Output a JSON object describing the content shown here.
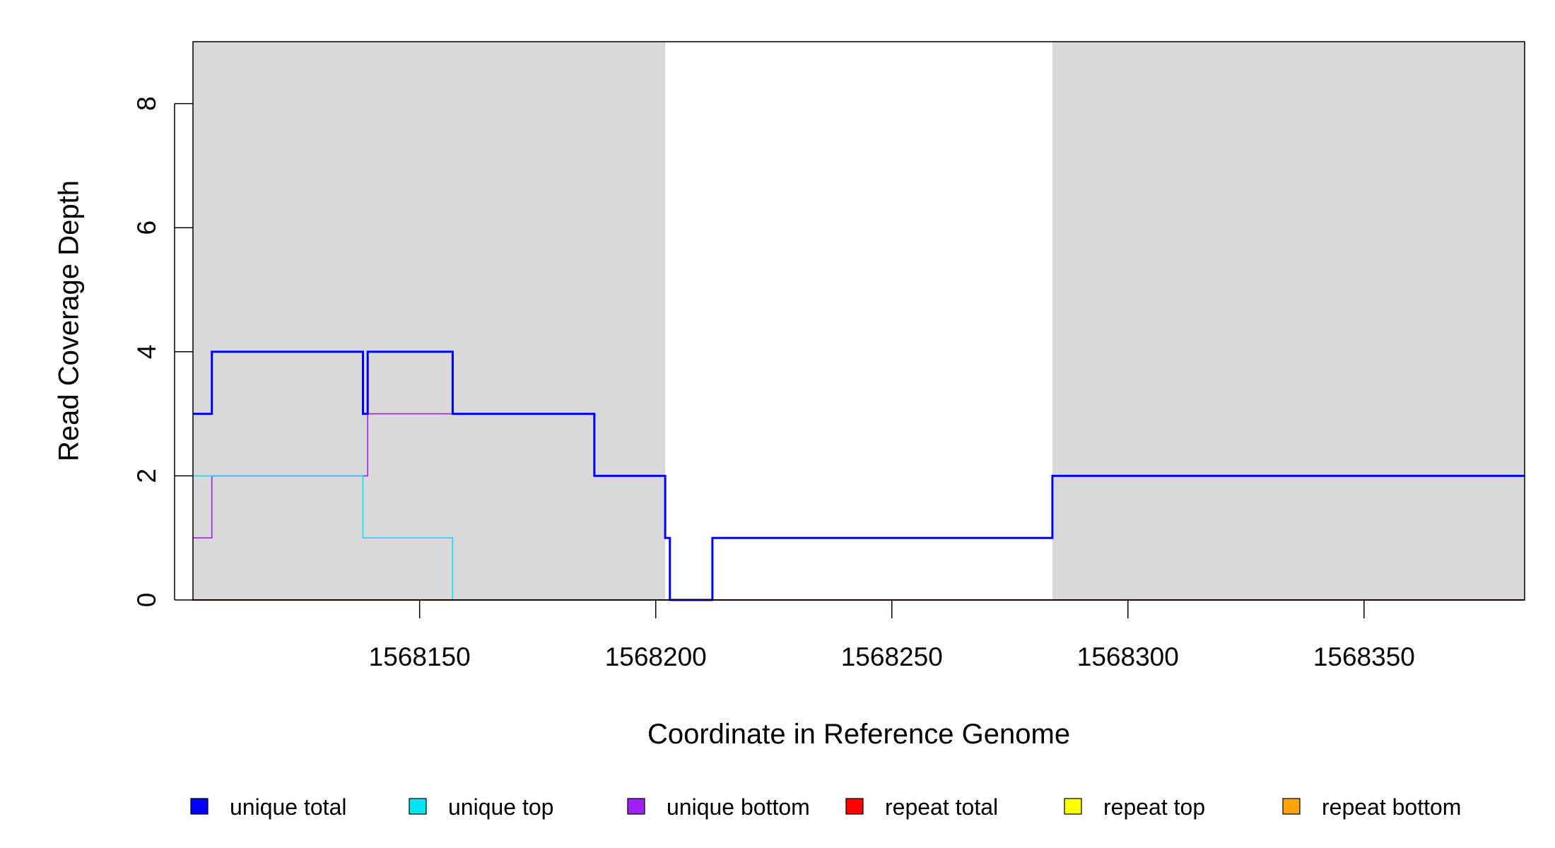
{
  "chart_data": {
    "type": "line",
    "xlabel": "Coordinate in Reference Genome",
    "ylabel": "Read Coverage Depth",
    "xlim": [
      1568102,
      1568384
    ],
    "ylim": [
      0,
      9
    ],
    "x_ticks": [
      1568150,
      1568200,
      1568250,
      1568300,
      1568350
    ],
    "x_tick_labels": [
      "1568150",
      "1568200",
      "1568250",
      "1568300",
      "1568350"
    ],
    "y_ticks": [
      0,
      2,
      4,
      6,
      8
    ],
    "y_tick_labels": [
      "0",
      "2",
      "4",
      "6",
      "8"
    ],
    "shaded_regions": [
      {
        "x_start": 1568102,
        "x_end": 1568202,
        "color": "#d9d9d9"
      },
      {
        "x_start": 1568284,
        "x_end": 1568384,
        "color": "#d9d9d9"
      }
    ],
    "series": [
      {
        "name": "unique total",
        "color": "#0000ff",
        "step": true,
        "x": [
          1568102,
          1568106,
          1568138,
          1568139,
          1568157,
          1568187,
          1568202,
          1568203,
          1568212,
          1568284,
          1568384
        ],
        "y": [
          3,
          4,
          3,
          4,
          3,
          2,
          1,
          0,
          1,
          2,
          2
        ]
      },
      {
        "name": "unique top",
        "color": "#00e5ee",
        "step": true,
        "x": [
          1568102,
          1568138,
          1568157,
          1568212,
          1568284,
          1568384
        ],
        "y": [
          2,
          1,
          0,
          1,
          2,
          2
        ]
      },
      {
        "name": "unique bottom",
        "color": "#a020f0",
        "step": true,
        "x": [
          1568102,
          1568106,
          1568139,
          1568187,
          1568202,
          1568203,
          1568384
        ],
        "y": [
          1,
          2,
          3,
          2,
          1,
          0,
          0
        ]
      },
      {
        "name": "repeat total",
        "color": "#ff0000",
        "step": true,
        "x": [
          1568102,
          1568384
        ],
        "y": [
          0,
          0
        ]
      },
      {
        "name": "repeat top",
        "color": "#ffff00",
        "step": true,
        "x": [
          1568102,
          1568384
        ],
        "y": [
          0,
          0
        ]
      },
      {
        "name": "repeat bottom",
        "color": "#ffa500",
        "step": true,
        "x": [
          1568102,
          1568384
        ],
        "y": [
          0,
          0
        ]
      }
    ],
    "legend": [
      {
        "label": "unique total",
        "color": "#0000ff"
      },
      {
        "label": "unique top",
        "color": "#00e5ee"
      },
      {
        "label": "unique bottom",
        "color": "#a020f0"
      },
      {
        "label": "repeat total",
        "color": "#ff0000"
      },
      {
        "label": "repeat top",
        "color": "#ffff00"
      },
      {
        "label": "repeat bottom",
        "color": "#ffa500"
      }
    ],
    "legend_position": "bottom"
  }
}
